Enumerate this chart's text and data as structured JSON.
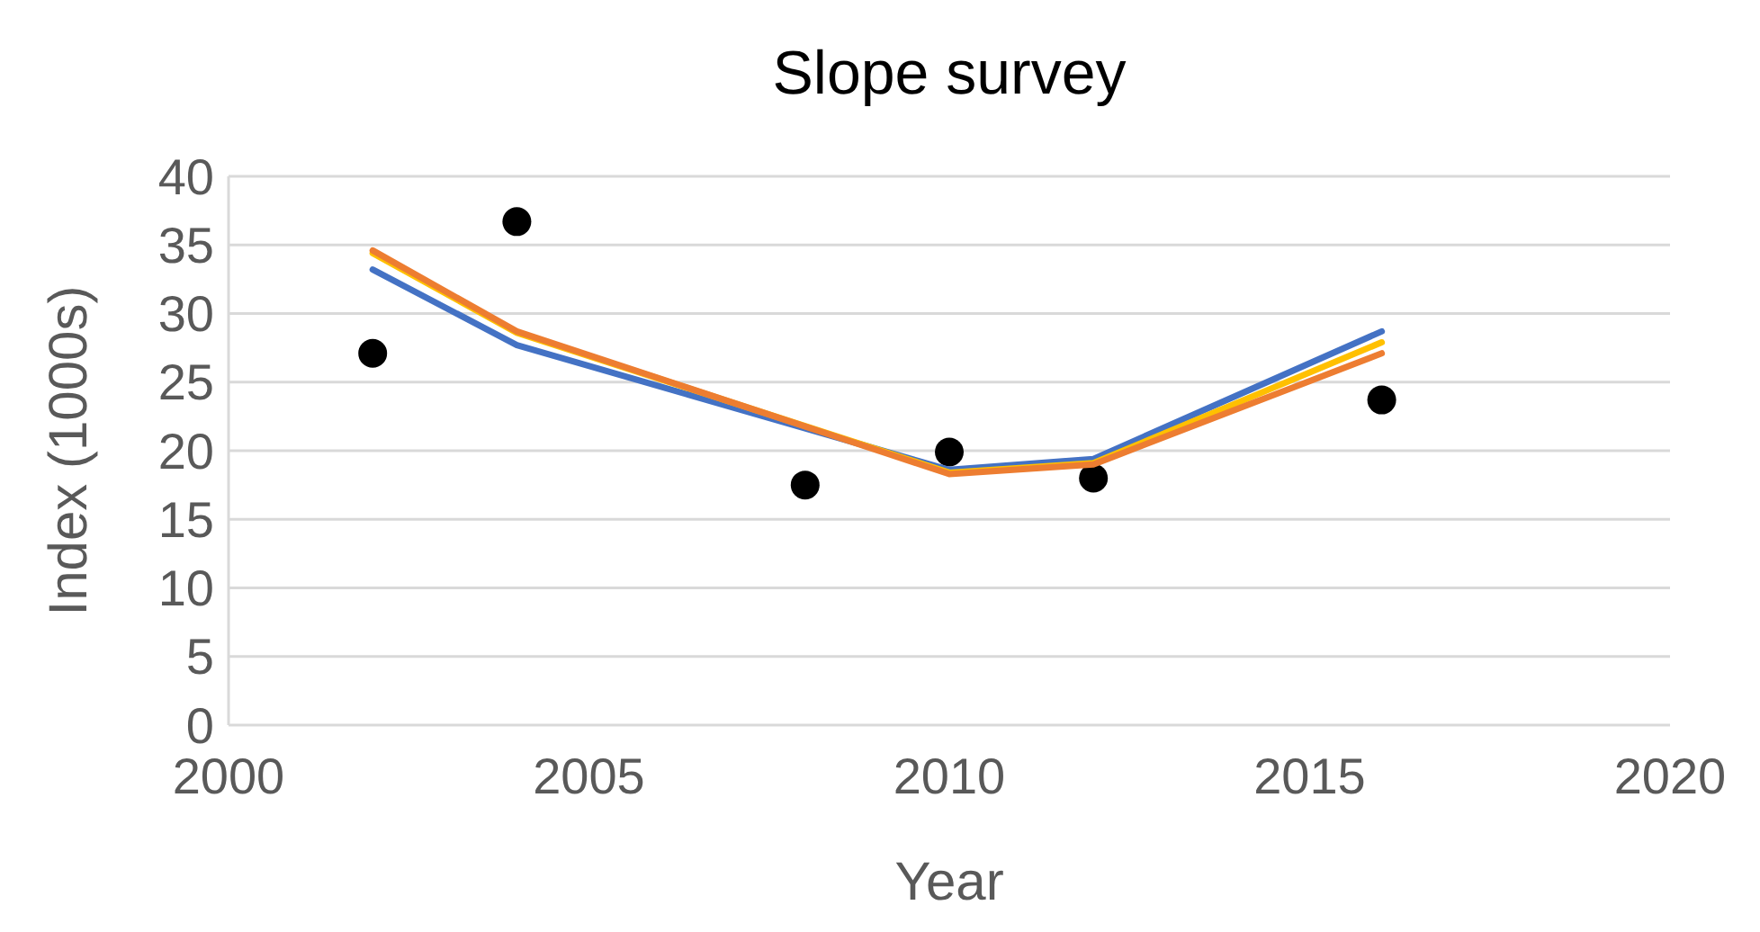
{
  "chart_data": {
    "type": "scatter",
    "title": "Slope survey",
    "xlabel": "Year",
    "ylabel": "Index (1000s)",
    "xlim": [
      2000,
      2020
    ],
    "xticks": [
      2000,
      2005,
      2010,
      2015,
      2020
    ],
    "ylim": [
      0,
      40
    ],
    "yticks": [
      0,
      5,
      10,
      15,
      20,
      25,
      30,
      35,
      40
    ],
    "grid": "y",
    "marker": "circle",
    "series": [
      {
        "color": "#000000",
        "x": [
          2002,
          2004,
          2008,
          2010,
          2012,
          2016
        ],
        "values": [
          27.1,
          36.7,
          17.5,
          19.9,
          18.0,
          23.7
        ]
      },
      {
        "type": "line",
        "color": "#4472c4",
        "marker": "none",
        "x": [
          2002,
          2004,
          2010,
          2012,
          2016
        ],
        "values": [
          33.2,
          27.7,
          18.6,
          19.4,
          28.7
        ]
      },
      {
        "type": "line",
        "color": "#ffc000",
        "marker": "none",
        "x": [
          2002,
          2004,
          2010,
          2012,
          2016
        ],
        "values": [
          34.4,
          28.6,
          18.4,
          19.1,
          27.9
        ]
      },
      {
        "type": "line",
        "color": "#ed7d31",
        "marker": "none",
        "x": [
          2002,
          2004,
          2010,
          2012,
          2016
        ],
        "values": [
          34.6,
          28.7,
          18.3,
          19.0,
          27.1
        ]
      }
    ]
  }
}
